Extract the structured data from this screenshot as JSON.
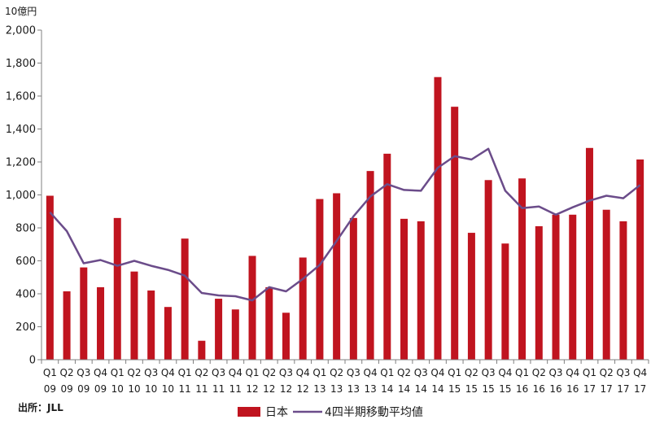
{
  "chart_data": {
    "type": "bar",
    "unit_label": "10億円",
    "source": "出所：JLL",
    "ylim": [
      0,
      2000
    ],
    "yticks": [
      "0",
      "200",
      "400",
      "600",
      "800",
      "1,000",
      "1,200",
      "1,400",
      "1,600",
      "1,800",
      "2,000"
    ],
    "ytick_values": [
      0,
      200,
      400,
      600,
      800,
      1000,
      1200,
      1400,
      1600,
      1800,
      2000
    ],
    "grid": false,
    "legend_position": "bottom",
    "categories": [
      [
        "Q1",
        "09"
      ],
      [
        "Q2",
        "09"
      ],
      [
        "Q3",
        "09"
      ],
      [
        "Q4",
        "09"
      ],
      [
        "Q1",
        "10"
      ],
      [
        "Q2",
        "10"
      ],
      [
        "Q3",
        "10"
      ],
      [
        "Q4",
        "10"
      ],
      [
        "Q1",
        "11"
      ],
      [
        "Q2",
        "11"
      ],
      [
        "Q3",
        "11"
      ],
      [
        "Q4",
        "11"
      ],
      [
        "Q1",
        "12"
      ],
      [
        "Q2",
        "12"
      ],
      [
        "Q3",
        "12"
      ],
      [
        "Q4",
        "12"
      ],
      [
        "Q1",
        "13"
      ],
      [
        "Q2",
        "13"
      ],
      [
        "Q3",
        "13"
      ],
      [
        "Q4",
        "13"
      ],
      [
        "Q1",
        "14"
      ],
      [
        "Q2",
        "14"
      ],
      [
        "Q3",
        "14"
      ],
      [
        "Q4",
        "14"
      ],
      [
        "Q1",
        "15"
      ],
      [
        "Q2",
        "15"
      ],
      [
        "Q3",
        "15"
      ],
      [
        "Q4",
        "15"
      ],
      [
        "Q1",
        "16"
      ],
      [
        "Q2",
        "16"
      ],
      [
        "Q3",
        "16"
      ],
      [
        "Q4",
        "16"
      ],
      [
        "Q1",
        "17"
      ],
      [
        "Q2",
        "17"
      ],
      [
        "Q3",
        "17"
      ],
      [
        "Q4",
        "17"
      ]
    ],
    "series": [
      {
        "name": "日本",
        "type": "bar",
        "color": "#c0141f",
        "values": [
          995,
          415,
          560,
          440,
          860,
          535,
          420,
          320,
          735,
          115,
          370,
          305,
          630,
          440,
          285,
          620,
          975,
          1010,
          860,
          1145,
          1250,
          855,
          840,
          1715,
          1535,
          770,
          1090,
          705,
          1100,
          810,
          880,
          880,
          1285,
          910,
          840,
          1215
        ]
      },
      {
        "name": "4四半期移動平均値",
        "type": "line",
        "color": "#6b4c8a",
        "values": [
          895,
          780,
          585,
          605,
          570,
          600,
          570,
          545,
          510,
          405,
          390,
          385,
          360,
          440,
          415,
          490,
          575,
          720,
          870,
          990,
          1065,
          1030,
          1025,
          1165,
          1235,
          1215,
          1280,
          1025,
          920,
          930,
          880,
          925,
          965,
          995,
          980,
          1060
        ]
      }
    ]
  }
}
